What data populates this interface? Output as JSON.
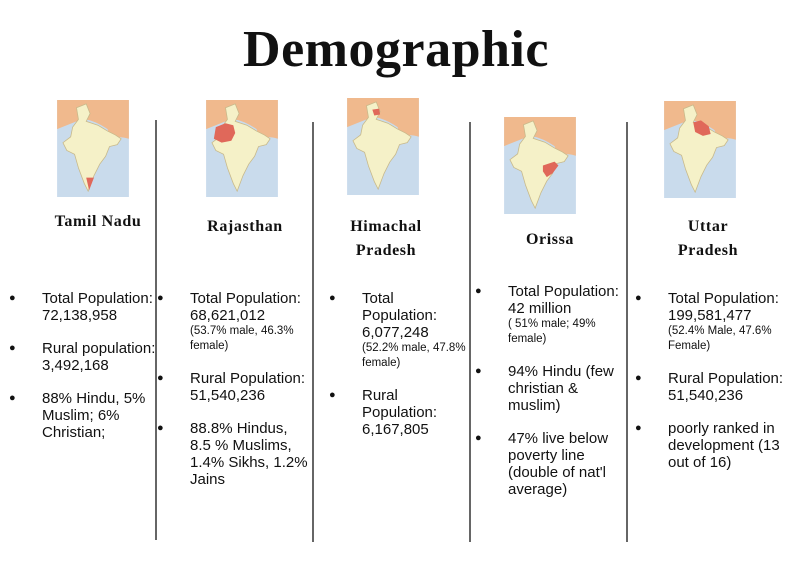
{
  "title": "Demographic",
  "colors": {
    "map_land": "#f5f1c8",
    "map_sea": "#c9dbec",
    "map_neighbor": "#f0b98d",
    "highlight": "#e0685a",
    "divider": "#666666"
  },
  "states": [
    {
      "name": "Tamil Nadu",
      "map_alt": "India map highlighting Tamil Nadu",
      "facts": [
        {
          "text": "Total Population: 72,138,958"
        },
        {
          "text": "Rural population: 3,492,168"
        },
        {
          "text": "88% Hindu, 5% Muslim; 6% Christian;"
        }
      ]
    },
    {
      "name": "Rajasthan",
      "map_alt": "India map highlighting Rajasthan",
      "facts": [
        {
          "text": "Total Population: 68,621,012",
          "note": "(53.7% male, 46.3% female)"
        },
        {
          "text": "Rural Population: 51,540,236"
        },
        {
          "text": "88.8% Hindus, 8.5 % Muslims, 1.4% Sikhs, 1.2% Jains"
        }
      ]
    },
    {
      "name": "Himachal Pradesh",
      "map_alt": "India map highlighting Himachal Pradesh",
      "facts": [
        {
          "text": "Total Population: 6,077,248",
          "note": "(52.2% male, 47.8% female)"
        },
        {
          "text": "Rural Population: 6,167,805"
        }
      ]
    },
    {
      "name": "Orissa",
      "map_alt": "India map highlighting Orissa",
      "facts": [
        {
          "text": "Total Population: 42 million",
          "note": "( 51% male; 49% female)"
        },
        {
          "text": "94% Hindu (few christian & muslim)"
        },
        {
          "text": " 47% live below poverty line (double of nat'l average)"
        }
      ]
    },
    {
      "name": "Uttar Pradesh",
      "map_alt": "India map highlighting Uttar Pradesh",
      "facts": [
        {
          "text": "Total Population: 199,581,477",
          "note": "(52.4% Male, 47.6% Female)"
        },
        {
          "text": "Rural Population: 51,540,236"
        },
        {
          "text": "poorly ranked in development (13 out of 16)"
        }
      ]
    }
  ]
}
